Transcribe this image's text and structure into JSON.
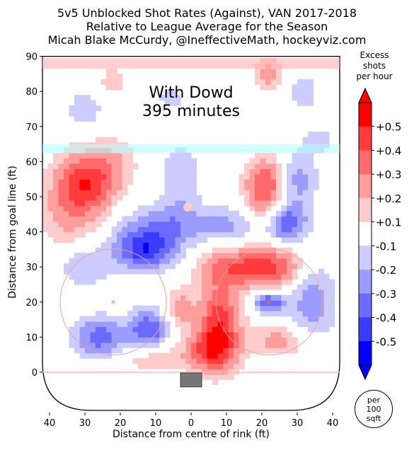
{
  "header": {
    "title": "5v5 Unblocked Shot Rates (Against), VAN 2017-2018",
    "subtitle": "Relative to League Average for the Season",
    "credit": "Micah Blake McCurdy, @IneffectiveMath, hockeyviz.com"
  },
  "annotation": {
    "line1": "With Dowd",
    "line2": "395 minutes"
  },
  "colorbar": {
    "title_lines": [
      "Excess",
      "shots",
      "per hour"
    ],
    "tick_labels": [
      "+0.5",
      "+0.4",
      "+0.3",
      "+0.2",
      "+0.1",
      "-0.1",
      "-0.2",
      "-0.3",
      "-0.4",
      "-0.5"
    ],
    "colors": [
      "#ff0000",
      "#ff3b3b",
      "#ff6b6b",
      "#ff9c9c",
      "#ffcccc",
      "#ffffff",
      "#ccccff",
      "#9c9cff",
      "#6b6bff",
      "#3b3bff",
      "#0000ff"
    ]
  },
  "badge": {
    "line1": "per",
    "line2": "100",
    "line3": "sqft"
  },
  "chart_data": {
    "type": "heatmap",
    "title": "5v5 Unblocked Shot Rates (Against), VAN 2017-2018",
    "xlabel": "Distance from centre of rink (ft)",
    "ylabel": "Distance from goal line (ft)",
    "xlim": [
      -42,
      42
    ],
    "ylim": [
      -11,
      90
    ],
    "x_ticks": [
      -40,
      -30,
      -20,
      -10,
      0,
      10,
      20,
      30,
      40
    ],
    "x_tick_labels": [
      "40",
      "30",
      "20",
      "10",
      "0",
      "10",
      "20",
      "30",
      "40"
    ],
    "y_ticks": [
      0,
      10,
      20,
      30,
      40,
      50,
      60,
      70,
      80,
      90
    ],
    "y_tick_labels": [
      "0",
      "10",
      "20",
      "30",
      "40",
      "50",
      "60",
      "70",
      "80",
      "90"
    ],
    "value_unit": "excess shots per hour per 100 sqft",
    "color_range": [
      -0.5,
      0.5
    ],
    "grid": false,
    "blobs": [
      {
        "x": -30,
        "y": 54,
        "value": 0.42,
        "sx": 6,
        "sy": 6
      },
      {
        "x": -35,
        "y": 44,
        "value": 0.15,
        "sx": 6,
        "sy": 6
      },
      {
        "x": -22,
        "y": 60,
        "value": 0.12,
        "sx": 5,
        "sy": 5
      },
      {
        "x": 21,
        "y": 54,
        "value": 0.35,
        "sx": 4,
        "sy": 5
      },
      {
        "x": 21,
        "y": 46,
        "value": 0.12,
        "sx": 5,
        "sy": 4
      },
      {
        "x": 8,
        "y": 14,
        "value": 0.42,
        "sx": 4,
        "sy": 8
      },
      {
        "x": 5,
        "y": 6,
        "value": 0.3,
        "sx": 5,
        "sy": 4
      },
      {
        "x": 15,
        "y": 30,
        "value": 0.35,
        "sx": 8,
        "sy": 4
      },
      {
        "x": 25,
        "y": 30,
        "value": 0.2,
        "sx": 5,
        "sy": 4
      },
      {
        "x": 25,
        "y": 9,
        "value": 0.2,
        "sx": 6,
        "sy": 3
      },
      {
        "x": -3,
        "y": 18,
        "value": 0.2,
        "sx": 3,
        "sy": 4
      },
      {
        "x": -11,
        "y": 4,
        "value": 0.15,
        "sx": 6,
        "sy": 3
      },
      {
        "x": -22,
        "y": 83,
        "value": 0.12,
        "sx": 3,
        "sy": 3
      },
      {
        "x": 22,
        "y": 85,
        "value": 0.2,
        "sx": 3,
        "sy": 3
      },
      {
        "x": -13,
        "y": 35,
        "value": -0.42,
        "sx": 6,
        "sy": 4
      },
      {
        "x": -6,
        "y": 42,
        "value": -0.22,
        "sx": 9,
        "sy": 4
      },
      {
        "x": -3,
        "y": 55,
        "value": -0.15,
        "sx": 4,
        "sy": 7
      },
      {
        "x": 27,
        "y": 43,
        "value": -0.35,
        "sx": 4,
        "sy": 4
      },
      {
        "x": 30,
        "y": 55,
        "value": -0.2,
        "sx": 4,
        "sy": 5
      },
      {
        "x": 34,
        "y": 20,
        "value": -0.2,
        "sx": 5,
        "sy": 8
      },
      {
        "x": 22,
        "y": 20,
        "value": -0.35,
        "sx": 3,
        "sy": 2
      },
      {
        "x": -12,
        "y": 12,
        "value": -0.35,
        "sx": 4,
        "sy": 4
      },
      {
        "x": -26,
        "y": 10,
        "value": -0.3,
        "sx": 5,
        "sy": 4
      },
      {
        "x": -30,
        "y": 30,
        "value": -0.15,
        "sx": 5,
        "sy": 4
      },
      {
        "x": 12,
        "y": 42,
        "value": -0.15,
        "sx": 5,
        "sy": 4
      },
      {
        "x": -30,
        "y": 75,
        "value": -0.12,
        "sx": 4,
        "sy": 4
      },
      {
        "x": 32,
        "y": 80,
        "value": -0.12,
        "sx": 3,
        "sy": 4
      },
      {
        "x": -6,
        "y": 78,
        "value": -0.1,
        "sx": 3,
        "sy": 3
      },
      {
        "x": 36,
        "y": 66,
        "value": -0.1,
        "sx": 4,
        "sy": 3
      }
    ]
  }
}
